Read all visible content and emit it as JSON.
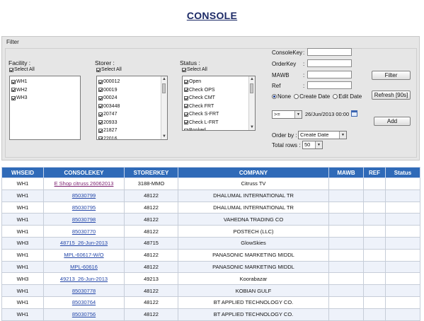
{
  "page": {
    "title": "CONSOLE"
  },
  "filter": {
    "legend": "Filter",
    "facility": {
      "label": "Facility :",
      "select_all": "Select All",
      "items": [
        "WH1",
        "WH2",
        "WH3"
      ]
    },
    "storer": {
      "label": "Storer :",
      "select_all": "Select All",
      "items": [
        "000012",
        "00019",
        "00024",
        "003448",
        "20747",
        "20933",
        "21827",
        "22016"
      ]
    },
    "status": {
      "label": "Status :",
      "select_all": "Select All",
      "items": [
        "Open",
        "Check OPS",
        "Check CMT",
        "Check FRT",
        "Check S-FRT",
        "Check L-FRT",
        "Booked"
      ]
    },
    "fields": [
      {
        "label": "ConsoleKey",
        "value": ""
      },
      {
        "label": "OrderKey",
        "value": ""
      },
      {
        "label": "MAWB",
        "value": ""
      },
      {
        "label": "Ref",
        "value": ""
      }
    ],
    "date_mode": {
      "options": [
        "None",
        "Create Date",
        "Edit Date"
      ],
      "selected": 0
    },
    "operator": ">=",
    "date_value": "26/Jun/2013 00:00",
    "order_by": {
      "label": "Order by :",
      "value": "Create Date"
    },
    "total_rows": {
      "label": "Total rows :",
      "value": "50"
    },
    "buttons": {
      "filter": "Filter",
      "refresh": "Refresh [90s]",
      "add": "Add"
    }
  },
  "table": {
    "columns": [
      "WHSEID",
      "CONSOLEKEY",
      "STORERKEY",
      "COMPANY",
      "MAWB",
      "REF",
      "Status"
    ],
    "rows": [
      {
        "whseid": "WH1",
        "consolekey": "E Shop citruss 26062013",
        "storerkey": "3188-MMO",
        "company": "Citruss TV",
        "mawb": "",
        "ref": "",
        "status": "",
        "visited": true
      },
      {
        "whseid": "WH1",
        "consolekey": "85030799",
        "storerkey": "48122",
        "company": "DHALUMAL INTERNATIONAL TR",
        "mawb": "",
        "ref": "",
        "status": "",
        "visited": false
      },
      {
        "whseid": "WH1",
        "consolekey": "85030795",
        "storerkey": "48122",
        "company": "DHALUMAL INTERNATIONAL TR",
        "mawb": "",
        "ref": "",
        "status": "",
        "visited": false
      },
      {
        "whseid": "WH1",
        "consolekey": "85030798",
        "storerkey": "48122",
        "company": "VAHEDNA TRADING CO",
        "mawb": "",
        "ref": "",
        "status": "",
        "visited": false
      },
      {
        "whseid": "WH1",
        "consolekey": "85030770",
        "storerkey": "48122",
        "company": "POSTECH (LLC)",
        "mawb": "",
        "ref": "",
        "status": "",
        "visited": false
      },
      {
        "whseid": "WH3",
        "consolekey": "48715_26-Jun-2013",
        "storerkey": "48715",
        "company": "GlowSkies",
        "mawb": "",
        "ref": "",
        "status": "",
        "visited": false
      },
      {
        "whseid": "WH1",
        "consolekey": "MPL-60617-W/O",
        "storerkey": "48122",
        "company": "PANASONIC MARKETING MIDDL",
        "mawb": "",
        "ref": "",
        "status": "",
        "visited": false
      },
      {
        "whseid": "WH1",
        "consolekey": "MPL-60616",
        "storerkey": "48122",
        "company": "PANASONIC MARKETING MIDDL",
        "mawb": "",
        "ref": "",
        "status": "",
        "visited": false
      },
      {
        "whseid": "WH3",
        "consolekey": "49213_26-Jun-2013",
        "storerkey": "49213",
        "company": "Koorabazar",
        "mawb": "",
        "ref": "",
        "status": "",
        "visited": false
      },
      {
        "whseid": "WH1",
        "consolekey": "85030778",
        "storerkey": "48122",
        "company": "KOBIAN GULF",
        "mawb": "",
        "ref": "",
        "status": "",
        "visited": false
      },
      {
        "whseid": "WH1",
        "consolekey": "85030764",
        "storerkey": "48122",
        "company": "BT APPLIED TECHNOLOGY CO.",
        "mawb": "",
        "ref": "",
        "status": "",
        "visited": false
      },
      {
        "whseid": "WH1",
        "consolekey": "85030756",
        "storerkey": "48122",
        "company": "BT APPLIED TECHNOLOGY CO.",
        "mawb": "",
        "ref": "",
        "status": "",
        "visited": false
      }
    ]
  },
  "icons": {
    "calendar": "calendar-icon",
    "checkbox": "checkbox-icon",
    "radio": "radio-icon"
  }
}
